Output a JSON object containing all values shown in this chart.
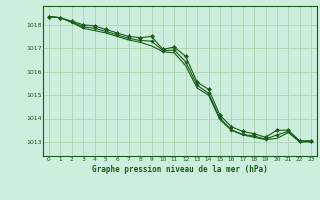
{
  "title": "Graphe pression niveau de la mer (hPa)",
  "background_color": "#cceedd",
  "plot_background": "#cceedd",
  "line_color": "#1a5c1a",
  "grid_color": "#aaccaa",
  "text_color": "#1a5c1a",
  "x_ticks": [
    0,
    1,
    2,
    3,
    4,
    5,
    6,
    7,
    8,
    9,
    10,
    11,
    12,
    13,
    14,
    15,
    16,
    17,
    18,
    19,
    20,
    21,
    22,
    23
  ],
  "y_ticks": [
    1013,
    1014,
    1015,
    1016,
    1017,
    1018
  ],
  "ylim": [
    1012.4,
    1018.8
  ],
  "xlim": [
    -0.5,
    23.5
  ],
  "line1": [
    1018.35,
    1018.3,
    1018.15,
    1018.0,
    1017.95,
    1017.8,
    1017.65,
    1017.5,
    1017.45,
    1017.5,
    1016.95,
    1017.05,
    1016.65,
    1015.55,
    1015.25,
    1014.15,
    1013.65,
    1013.45,
    1013.35,
    1013.2,
    1013.5,
    1013.5,
    1013.05,
    1013.05
  ],
  "line2": [
    1018.35,
    1018.3,
    1018.1,
    1017.85,
    1017.75,
    1017.65,
    1017.5,
    1017.35,
    1017.25,
    1017.1,
    1016.85,
    1016.8,
    1016.25,
    1015.3,
    1015.0,
    1013.95,
    1013.5,
    1013.3,
    1013.2,
    1013.1,
    1013.15,
    1013.4,
    1013.0,
    1013.0
  ],
  "line3": [
    1018.35,
    1018.3,
    1018.12,
    1017.92,
    1017.85,
    1017.72,
    1017.57,
    1017.42,
    1017.33,
    1017.3,
    1016.9,
    1016.92,
    1016.42,
    1015.42,
    1015.08,
    1014.02,
    1013.52,
    1013.32,
    1013.25,
    1013.12,
    1013.3,
    1013.45,
    1013.02,
    1013.02
  ]
}
